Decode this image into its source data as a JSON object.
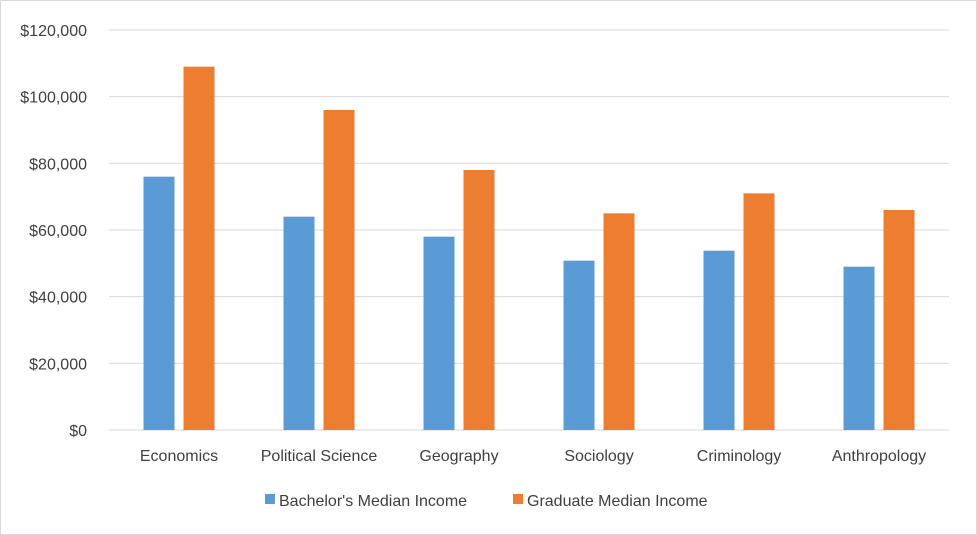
{
  "chart_data": {
    "type": "bar",
    "title": "",
    "xlabel": "",
    "ylabel": "",
    "categories": [
      "Economics",
      "Political Science",
      "Geography",
      "Sociology",
      "Criminology",
      "Anthropology"
    ],
    "series": [
      {
        "name": "Bachelor's Median Income",
        "color": "#5b9bd5",
        "values": [
          76000,
          64000,
          58000,
          50800,
          53800,
          49000
        ]
      },
      {
        "name": "Graduate Median Income",
        "color": "#ed7d31",
        "values": [
          109000,
          96000,
          78000,
          65000,
          71000,
          66000
        ]
      }
    ],
    "ylim": [
      0,
      120000
    ],
    "yticks": [
      0,
      20000,
      40000,
      60000,
      80000,
      100000,
      120000
    ],
    "ytick_labels": [
      "$0",
      "$20,000",
      "$40,000",
      "$60,000",
      "$80,000",
      "$100,000",
      "$120,000"
    ],
    "grid": true,
    "legend_position": "bottom"
  }
}
